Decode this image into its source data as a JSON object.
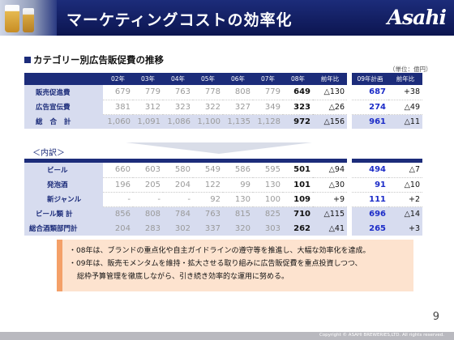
{
  "header": {
    "title": "マーケティングコストの効率化",
    "logo": "Asahi"
  },
  "section_title": "カテゴリー別広告販促費の推移",
  "unit": "（単位：億円）",
  "columns": [
    "02年",
    "03年",
    "04年",
    "05年",
    "06年",
    "07年",
    "08年",
    "前年比",
    "09年計画",
    "前年比"
  ],
  "table1": [
    {
      "label": "販売促進費",
      "values": [
        "679",
        "779",
        "763",
        "778",
        "808",
        "779",
        "649",
        "△130",
        "687",
        "+38"
      ]
    },
    {
      "label": "広告宣伝費",
      "values": [
        "381",
        "312",
        "323",
        "322",
        "327",
        "349",
        "323",
        "△26",
        "274",
        "△49"
      ]
    },
    {
      "label": "総 合 計",
      "values": [
        "1,060",
        "1,091",
        "1,086",
        "1,100",
        "1,135",
        "1,128",
        "972",
        "△156",
        "961",
        "△11"
      ]
    }
  ],
  "breakdown_label": "＜内訳＞",
  "table2": [
    {
      "label": "ビール",
      "values": [
        "660",
        "603",
        "580",
        "549",
        "586",
        "595",
        "501",
        "△94",
        "494",
        "△7"
      ]
    },
    {
      "label": "発泡酒",
      "values": [
        "196",
        "205",
        "204",
        "122",
        "99",
        "130",
        "101",
        "△30",
        "91",
        "△10"
      ]
    },
    {
      "label": "新ジャンル",
      "values": [
        "-",
        "-",
        "-",
        "92",
        "130",
        "100",
        "109",
        "+9",
        "111",
        "+2"
      ]
    },
    {
      "label": "ビール類 計",
      "values": [
        "856",
        "808",
        "784",
        "763",
        "815",
        "825",
        "710",
        "△115",
        "696",
        "△14"
      ]
    },
    {
      "label": "総合酒類部門計",
      "values": [
        "204",
        "283",
        "302",
        "337",
        "320",
        "303",
        "262",
        "△41",
        "265",
        "+3"
      ]
    }
  ],
  "notes": [
    "・08年は、ブランドの重点化や自主ガイドラインの遵守等を推進し、大幅な効率化を達成。",
    "・09年は、販売モメンタムを維持・拡大させる取り組みに広告販促費を重点投資しつつ、",
    "総枠予算管理を徹底しながら、引き続き効率的な運用に努める。"
  ],
  "page_number": "9",
  "copyright": "Copyright © ASAHI BREWERIES,LTD. All rights reserved.",
  "colors": {
    "navy": "#1c2c7a",
    "label_bg": "#d7dcef",
    "note_bg": "#fde3cf",
    "note_bar": "#f4a068",
    "plan_blue": "#1c2cc8"
  }
}
